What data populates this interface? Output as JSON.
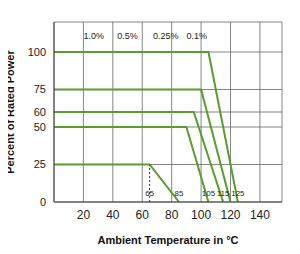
{
  "chart_data": {
    "type": "line",
    "x_label": "Ambient Temperature in °C",
    "y_label": "Percent of Rated Power",
    "xlim": [
      0,
      155
    ],
    "xticks": [
      20,
      40,
      60,
      80,
      100,
      120,
      140
    ],
    "ylim": [
      0,
      120
    ],
    "yticks": [
      0,
      25,
      50,
      60,
      75,
      100
    ],
    "grid": true,
    "color": "#5a9c2e",
    "series": [
      {
        "x": [
          0,
          105,
          125
        ],
        "values": [
          100,
          100,
          0
        ]
      },
      {
        "x": [
          0,
          100,
          120
        ],
        "values": [
          75,
          75,
          0
        ]
      },
      {
        "x": [
          0,
          95,
          115
        ],
        "values": [
          60,
          60,
          0
        ]
      },
      {
        "x": [
          0,
          90,
          105
        ],
        "values": [
          50,
          50,
          0
        ]
      },
      {
        "x": [
          0,
          65,
          85
        ],
        "values": [
          25,
          25,
          0
        ]
      }
    ],
    "annotations": [
      {
        "text": "1.0%",
        "x": 27,
        "y": 111
      },
      {
        "text": "0.5%",
        "x": 50,
        "y": 111
      },
      {
        "text": "0.25%",
        "x": 76,
        "y": 111
      },
      {
        "text": "0.1%",
        "x": 97,
        "y": 111
      },
      {
        "text": "65",
        "x": 65,
        "y": 6
      },
      {
        "text": "85",
        "x": 85,
        "y": 6
      },
      {
        "text": "105",
        "x": 105,
        "y": 6
      },
      {
        "text": "115",
        "x": 115,
        "y": 6
      },
      {
        "text": "125",
        "x": 125,
        "y": 6
      }
    ]
  }
}
